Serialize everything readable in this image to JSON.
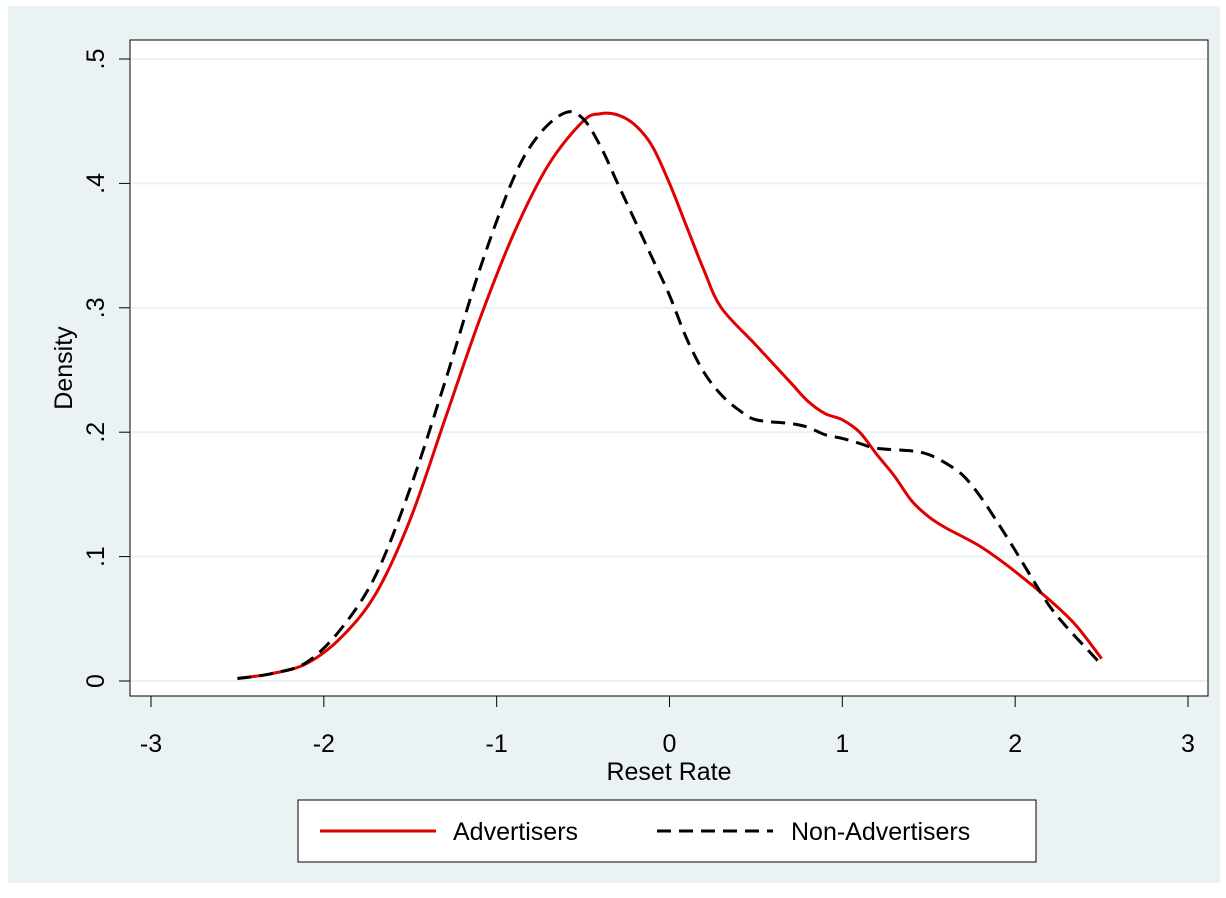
{
  "chart_data": {
    "type": "line",
    "title": "",
    "xlabel": "Reset Rate",
    "ylabel": "Density",
    "xlim": [
      -3,
      3
    ],
    "ylim": [
      0,
      0.5
    ],
    "xticks": [
      {
        "value": -3,
        "label": "-3"
      },
      {
        "value": -2,
        "label": "-2"
      },
      {
        "value": -1,
        "label": "-1"
      },
      {
        "value": 0,
        "label": "0"
      },
      {
        "value": 1,
        "label": "1"
      },
      {
        "value": 2,
        "label": "2"
      },
      {
        "value": 3,
        "label": "3"
      }
    ],
    "yticks": [
      {
        "value": 0,
        "label": "0"
      },
      {
        "value": 0.1,
        "label": ".1"
      },
      {
        "value": 0.2,
        "label": ".2"
      },
      {
        "value": 0.3,
        "label": ".3"
      },
      {
        "value": 0.4,
        "label": ".4"
      },
      {
        "value": 0.5,
        "label": ".5"
      }
    ],
    "grid": true,
    "legend_position": "bottom",
    "series": [
      {
        "name": "Advertisers",
        "color": "#e00000",
        "style": "solid",
        "points": [
          [
            -2.5,
            0.002
          ],
          [
            -2.3,
            0.006
          ],
          [
            -2.1,
            0.014
          ],
          [
            -1.9,
            0.035
          ],
          [
            -1.7,
            0.07
          ],
          [
            -1.5,
            0.13
          ],
          [
            -1.3,
            0.21
          ],
          [
            -1.1,
            0.29
          ],
          [
            -0.9,
            0.36
          ],
          [
            -0.7,
            0.415
          ],
          [
            -0.5,
            0.45
          ],
          [
            -0.4,
            0.456
          ],
          [
            -0.3,
            0.455
          ],
          [
            -0.2,
            0.447
          ],
          [
            -0.1,
            0.43
          ],
          [
            0.0,
            0.4
          ],
          [
            0.1,
            0.365
          ],
          [
            0.2,
            0.33
          ],
          [
            0.3,
            0.3
          ],
          [
            0.5,
            0.27
          ],
          [
            0.7,
            0.24
          ],
          [
            0.8,
            0.225
          ],
          [
            0.9,
            0.215
          ],
          [
            1.0,
            0.21
          ],
          [
            1.1,
            0.2
          ],
          [
            1.2,
            0.182
          ],
          [
            1.3,
            0.165
          ],
          [
            1.4,
            0.145
          ],
          [
            1.5,
            0.132
          ],
          [
            1.6,
            0.123
          ],
          [
            1.8,
            0.108
          ],
          [
            2.0,
            0.088
          ],
          [
            2.2,
            0.065
          ],
          [
            2.35,
            0.045
          ],
          [
            2.5,
            0.018
          ]
        ]
      },
      {
        "name": "Non-Advertisers",
        "color": "#000000",
        "style": "dashed",
        "points": [
          [
            -2.5,
            0.002
          ],
          [
            -2.3,
            0.006
          ],
          [
            -2.1,
            0.015
          ],
          [
            -1.9,
            0.042
          ],
          [
            -1.7,
            0.085
          ],
          [
            -1.5,
            0.155
          ],
          [
            -1.3,
            0.24
          ],
          [
            -1.1,
            0.33
          ],
          [
            -0.9,
            0.405
          ],
          [
            -0.75,
            0.44
          ],
          [
            -0.6,
            0.457
          ],
          [
            -0.5,
            0.452
          ],
          [
            -0.4,
            0.43
          ],
          [
            -0.3,
            0.4
          ],
          [
            -0.2,
            0.37
          ],
          [
            -0.1,
            0.34
          ],
          [
            0.0,
            0.31
          ],
          [
            0.1,
            0.275
          ],
          [
            0.2,
            0.248
          ],
          [
            0.3,
            0.23
          ],
          [
            0.4,
            0.218
          ],
          [
            0.5,
            0.21
          ],
          [
            0.7,
            0.207
          ],
          [
            0.8,
            0.204
          ],
          [
            0.9,
            0.198
          ],
          [
            1.0,
            0.195
          ],
          [
            1.1,
            0.191
          ],
          [
            1.2,
            0.187
          ],
          [
            1.4,
            0.185
          ],
          [
            1.5,
            0.182
          ],
          [
            1.6,
            0.175
          ],
          [
            1.7,
            0.165
          ],
          [
            1.8,
            0.148
          ],
          [
            1.9,
            0.127
          ],
          [
            2.0,
            0.105
          ],
          [
            2.1,
            0.082
          ],
          [
            2.2,
            0.06
          ],
          [
            2.3,
            0.043
          ],
          [
            2.4,
            0.028
          ],
          [
            2.5,
            0.013
          ]
        ]
      }
    ]
  }
}
